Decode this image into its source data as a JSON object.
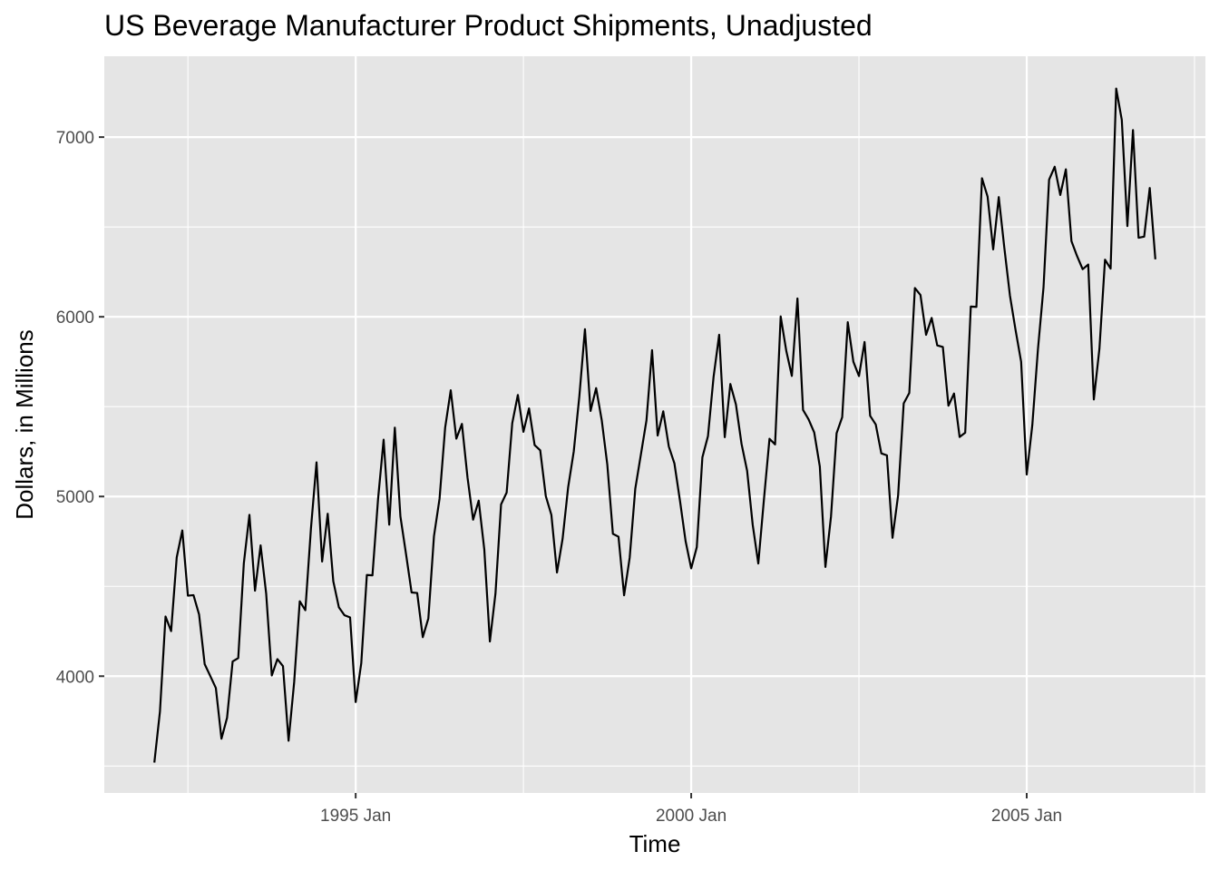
{
  "chart_data": {
    "type": "line",
    "title": "US Beverage Manufacturer Product Shipments, Unadjusted",
    "xlabel": "Time",
    "ylabel": "Dollars, in Millions",
    "x_start": "1992-01",
    "x_end": "2006-12",
    "x_ticks": [
      {
        "date": "1995-01",
        "label": "1995 Jan"
      },
      {
        "date": "2000-01",
        "label": "2000 Jan"
      },
      {
        "date": "2005-01",
        "label": "2005 Jan"
      }
    ],
    "y_ticks": [
      4000,
      5000,
      6000,
      7000
    ],
    "ylim": [
      3350,
      7450
    ],
    "grid": true,
    "background": "#e5e5e5",
    "grid_color": "#ffffff",
    "line_color": "#000000",
    "series": [
      {
        "values": [
          3519,
          3803,
          4332,
          4251,
          4661,
          4811,
          4448,
          4451,
          4343,
          4067,
          4001,
          3934,
          3652,
          3768,
          4082,
          4101,
          4628,
          4898,
          4476,
          4728,
          4458,
          4004,
          4095,
          4056,
          3641,
          3966,
          4417,
          4367,
          4821,
          5190,
          4638,
          4904,
          4528,
          4383,
          4339,
          4327,
          3856,
          4072,
          4563,
          4561,
          4984,
          5316,
          4843,
          5383,
          4889,
          4681,
          4466,
          4463,
          4217,
          4322,
          4779,
          4988,
          5383,
          5591,
          5322,
          5404,
          5106,
          4871,
          4977,
          4706,
          4193,
          4460,
          4956,
          5022,
          5408,
          5565,
          5360,
          5490,
          5286,
          5257,
          5002,
          4897,
          4577,
          4764,
          5052,
          5251,
          5558,
          5931,
          5476,
          5603,
          5425,
          5177,
          4792,
          4776,
          4450,
          4659,
          5043,
          5233,
          5423,
          5814,
          5339,
          5474,
          5278,
          5184,
          4975,
          4751,
          4600,
          4718,
          5218,
          5336,
          5665,
          5900,
          5330,
          5626,
          5512,
          5293,
          5143,
          4842,
          4627,
          4981,
          5321,
          5290,
          6002,
          5811,
          5671,
          6102,
          5482,
          5429,
          5356,
          5167,
          4608,
          4889,
          5352,
          5441,
          5970,
          5750,
          5670,
          5860,
          5449,
          5401,
          5240,
          5229,
          4770,
          5006,
          5518,
          5576,
          6160,
          6121,
          5900,
          5994,
          5841,
          5832,
          5505,
          5573,
          5331,
          5355,
          6057,
          6055,
          6771,
          6669,
          6375,
          6666,
          6383,
          6118,
          5927,
          5750,
          5122,
          5398,
          5817,
          6163,
          6763,
          6835,
          6678,
          6821,
          6421,
          6338,
          6265,
          6291,
          5540,
          5822,
          6318,
          6268,
          7270,
          7096,
          6505,
          7039,
          6440,
          6446,
          6717,
          6320
        ]
      }
    ]
  }
}
